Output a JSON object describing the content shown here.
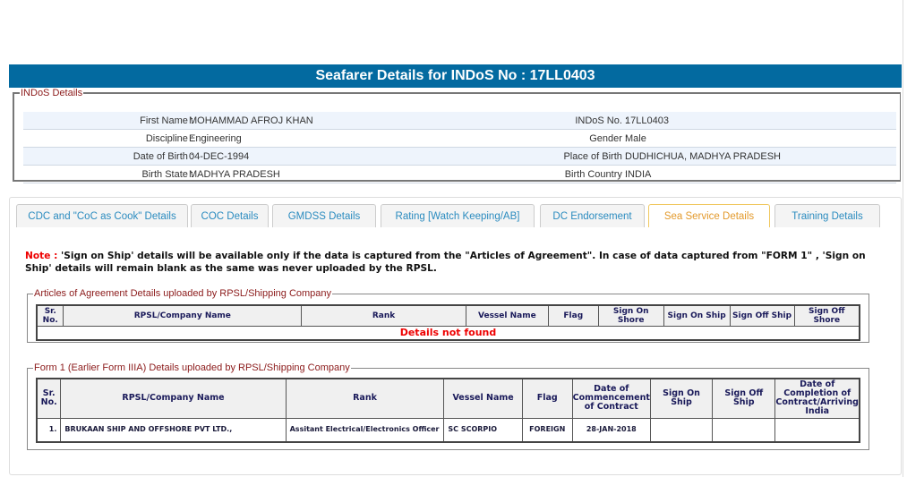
{
  "header": {
    "title": "Seafarer Details for INDoS No : 17LL0403"
  },
  "indos": {
    "legend": "INDoS Details",
    "rows": [
      {
        "l1": "First Name :",
        "v1": "MOHAMMAD AFROJ KHAN",
        "l2": "INDoS No. :",
        "v2": "17LL0403"
      },
      {
        "l1": "Discipline :",
        "v1": "Engineering",
        "l2": "Gender :",
        "v2": "Male"
      },
      {
        "l1": "Date of Birth :",
        "v1": "04-DEC-1994",
        "l2": "Place of Birth :",
        "v2": "DUDHICHUA, MADHYA PRADESH"
      },
      {
        "l1": "Birth State :",
        "v1": "MADHYA PRADESH",
        "l2": "Birth Country :",
        "v2": "INDIA"
      }
    ]
  },
  "tabs": [
    {
      "label": "CDC and \"CoC as Cook\" Details"
    },
    {
      "label": "COC Details"
    },
    {
      "label": "GMDSS Details"
    },
    {
      "label": "Rating [Watch Keeping/AB]"
    },
    {
      "label": "DC Endorsement"
    },
    {
      "label": "Sea Service Details",
      "active": true
    },
    {
      "label": "Training Details"
    }
  ],
  "note": {
    "label": "Note :",
    "text": " 'Sign on Ship' details will be available only if the data is captured from the \"Articles of Agreement\". In case of data captured from \"FORM 1\" , 'Sign on Ship' details will remain blank as the same was never uploaded by the RPSL."
  },
  "articles": {
    "legend": "Articles of Agreement Details uploaded by RPSL/Shipping Company",
    "columns": [
      "Sr. No.",
      "RPSL/Company Name",
      "Rank",
      "Vessel Name",
      "Flag",
      "Sign On Shore",
      "Sign On Ship",
      "Sign Off Ship",
      "Sign Off Shore"
    ],
    "empty": "Details not found"
  },
  "form1": {
    "legend": "Form 1 (Earlier Form IIIA) Details uploaded by RPSL/Shipping Company",
    "columns": [
      "Sr. No.",
      "RPSL/Company Name",
      "Rank",
      "Vessel Name",
      "Flag",
      "Date of Commencement of Contract",
      "Sign On Ship",
      "Sign Off Ship",
      "Date of Completion of Contract/Arriving India"
    ],
    "rows": [
      [
        "1.",
        "BRUKAAN SHIP AND OFFSHORE PVT LTD.,",
        "Assitant Electrical/Electronics Officer",
        "SC SCORPIO",
        "FOREIGN",
        "28-JAN-2018",
        "",
        "",
        ""
      ]
    ]
  }
}
